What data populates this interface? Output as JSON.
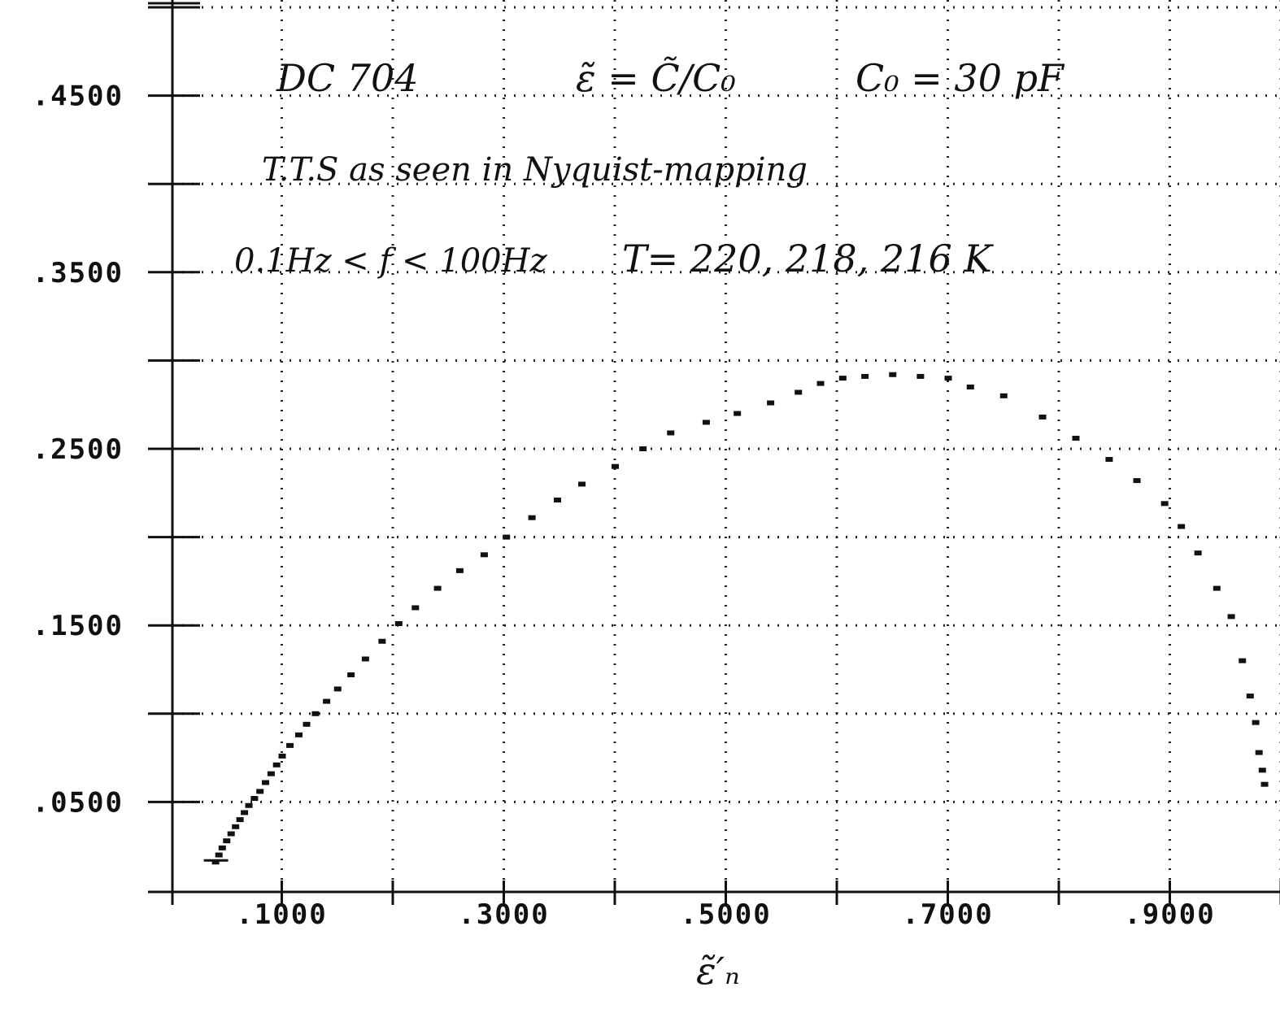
{
  "chart_data": {
    "type": "scatter",
    "annotations": {
      "line1_a": "DC 704",
      "line1_b": "ε̃ = C̃/C₀",
      "line1_c": "C₀ = 30 pF",
      "line2": "T.T.S as seen in Nyquist-mapping",
      "line3_a": "0.1Hz < f < 100Hz",
      "line3_b": "T= 220, 218, 216 K",
      "xlabel": "ε̃′ₙ"
    },
    "x_tick_labels": [
      ".1000",
      ".3000",
      ".5000",
      ".7000",
      ".9000"
    ],
    "x_ticks": [
      0.1,
      0.3,
      0.5,
      0.7,
      0.9
    ],
    "y_tick_labels": [
      ".0500",
      ".1500",
      ".2500",
      ".3500",
      ".4500"
    ],
    "y_ticks": [
      0.05,
      0.15,
      0.25,
      0.35,
      0.45
    ],
    "xlim": [
      -0.0,
      1.0
    ],
    "ylim": [
      0.0,
      0.5
    ],
    "grid": true,
    "series": [
      {
        "x": [
          0.04,
          0.043,
          0.046,
          0.05,
          0.054,
          0.058,
          0.062,
          0.066,
          0.07,
          0.075,
          0.08,
          0.085,
          0.09,
          0.095,
          0.1,
          0.107,
          0.115,
          0.122,
          0.13,
          0.14,
          0.15,
          0.162,
          0.175,
          0.19,
          0.205,
          0.22,
          0.24,
          0.26,
          0.282,
          0.302,
          0.325,
          0.348,
          0.37,
          0.4,
          0.425,
          0.45,
          0.482,
          0.51,
          0.54,
          0.565,
          0.585,
          0.605,
          0.625,
          0.65,
          0.675,
          0.7,
          0.72,
          0.75,
          0.785,
          0.815,
          0.845,
          0.87,
          0.895,
          0.91,
          0.925,
          0.942,
          0.955,
          0.965,
          0.972,
          0.977,
          0.98,
          0.983,
          0.985
        ],
        "y": [
          0.016,
          0.02,
          0.024,
          0.028,
          0.032,
          0.036,
          0.04,
          0.044,
          0.048,
          0.052,
          0.056,
          0.061,
          0.066,
          0.071,
          0.076,
          0.082,
          0.088,
          0.094,
          0.1,
          0.107,
          0.114,
          0.122,
          0.131,
          0.141,
          0.151,
          0.16,
          0.171,
          0.181,
          0.19,
          0.2,
          0.211,
          0.221,
          0.23,
          0.24,
          0.25,
          0.259,
          0.265,
          0.27,
          0.276,
          0.282,
          0.287,
          0.29,
          0.291,
          0.292,
          0.291,
          0.29,
          0.285,
          0.28,
          0.268,
          0.256,
          0.244,
          0.232,
          0.219,
          0.206,
          0.191,
          0.171,
          0.155,
          0.13,
          0.11,
          0.095,
          0.078,
          0.068,
          0.06
        ]
      }
    ]
  }
}
